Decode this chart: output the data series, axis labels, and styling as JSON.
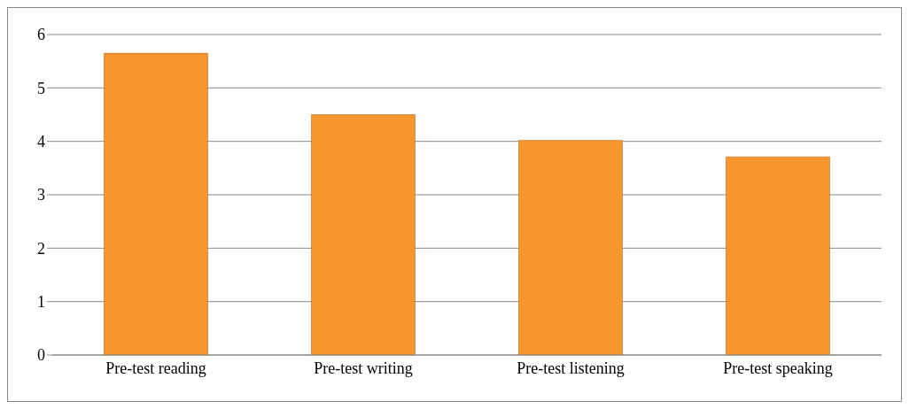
{
  "chart_data": {
    "type": "bar",
    "categories": [
      "Pre-test reading",
      "Pre-test writing",
      "Pre-test listening",
      "Pre-test speaking"
    ],
    "values": [
      5.65,
      4.5,
      4.02,
      3.71
    ],
    "color": "#f7962f",
    "ylim": [
      0,
      6
    ],
    "yticks": [
      0,
      1,
      2,
      3,
      4,
      5,
      6
    ],
    "grid": "y",
    "legend": false
  }
}
